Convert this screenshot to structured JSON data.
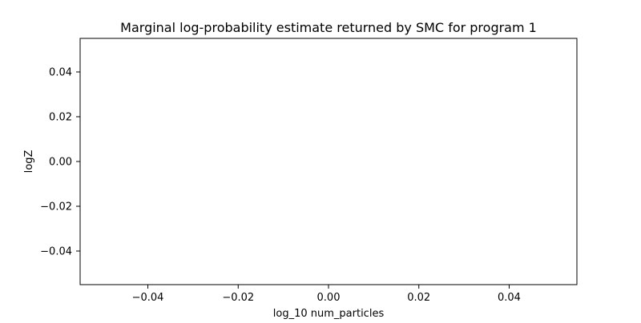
{
  "chart_data": {
    "type": "line",
    "title": "Marginal log-probability estimate returned by SMC for program 1",
    "xlabel": "log_10 num_particles",
    "ylabel": "logZ",
    "series": [],
    "xlim": [
      -0.055,
      0.055
    ],
    "ylim": [
      -0.055,
      0.055
    ],
    "xticks": [
      -0.04,
      -0.02,
      0.0,
      0.02,
      0.04
    ],
    "xtick_labels": [
      "−0.04",
      "−0.02",
      "0.00",
      "0.02",
      "0.04"
    ],
    "yticks": [
      0.04,
      0.02,
      0.0,
      -0.02,
      -0.04
    ],
    "ytick_labels": [
      "0.04",
      "0.02",
      "0.00",
      "−0.02",
      "−0.04"
    ],
    "grid": false,
    "legend": "none"
  }
}
